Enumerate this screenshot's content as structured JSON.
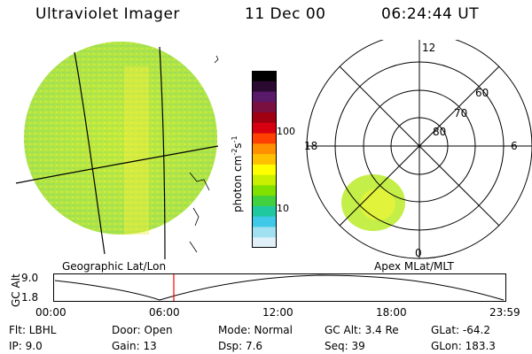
{
  "header": {
    "instrument": "Ultraviolet Imager",
    "date": "11 Dec 00",
    "time": "06:24:44 UT"
  },
  "left_panel": {
    "label": "Geographic Lat/Lon"
  },
  "right_panel": {
    "label": "Apex MLat/MLT",
    "mlt_labels": {
      "top": "12",
      "left": "18",
      "right": "6",
      "bottom": "0"
    },
    "lat_labels": [
      "60",
      "70",
      "80"
    ]
  },
  "colorbar": {
    "unit": "photon cm",
    "unit_exp1": "-2",
    "unit_mid": "s",
    "unit_exp2": "-1",
    "ticks": [
      "100",
      "10"
    ],
    "colors": [
      "#000000",
      "#2a0a30",
      "#5a1a6a",
      "#7a1040",
      "#a00010",
      "#d80010",
      "#ff4000",
      "#ff9000",
      "#ffc000",
      "#ffff00",
      "#c8f000",
      "#80e000",
      "#40d040",
      "#20c8a0",
      "#40c8e8",
      "#a0e0f0",
      "#e0f0f8"
    ]
  },
  "altitude_plot": {
    "ylabel": "GC Alt",
    "yticks": [
      "9.0",
      "1.8"
    ],
    "xticks": [
      "00:00",
      "06:00",
      "12:00",
      "18:00",
      "23:59"
    ]
  },
  "footer": {
    "row1": {
      "flt": "Flt: LBHL",
      "door": "Door: Open",
      "mode": "Mode: Normal",
      "gcalt": "GC Alt: 3.4 Re",
      "glat": "GLat: -64.2"
    },
    "row2": {
      "ip": "IP:  9.0",
      "gain": "Gain: 13",
      "dsp": "Dsp:     7.6",
      "seq": "Seq: 39",
      "glon": "GLon: 183.3"
    }
  },
  "colors": {
    "emission_low": "#c8ee40",
    "emission_mid": "#a8e030",
    "emission_high": "#ffee40",
    "marker": "#ff0000"
  }
}
